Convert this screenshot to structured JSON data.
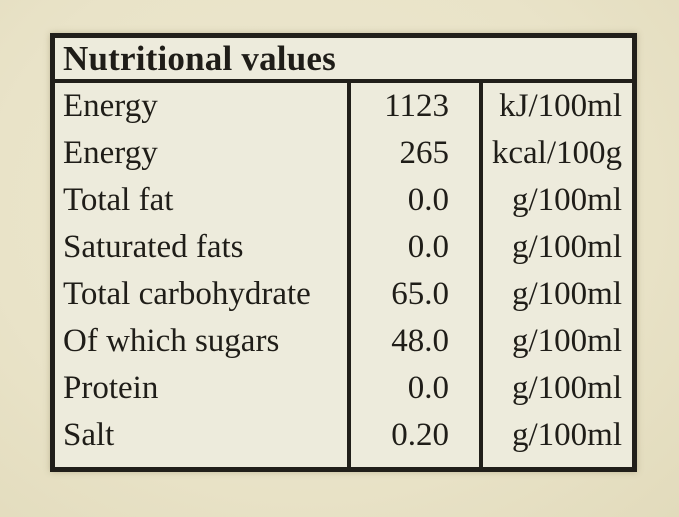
{
  "table": {
    "title": "Nutritional values",
    "border_color": "#211f1a",
    "cell_background": "#edebdc",
    "page_background": "#e9e3c8",
    "rows": [
      {
        "label": "Energy",
        "value": "1123",
        "unit": "kJ/100ml"
      },
      {
        "label": "Energy",
        "value": "265",
        "unit": "kcal/100g"
      },
      {
        "label": "Total fat",
        "value": "0.0",
        "unit": "g/100ml"
      },
      {
        "label": "Saturated fats",
        "value": "0.0",
        "unit": "g/100ml"
      },
      {
        "label": "Total carbohydrate",
        "value": "65.0",
        "unit": "g/100ml"
      },
      {
        "label": "Of which sugars",
        "value": "48.0",
        "unit": "g/100ml"
      },
      {
        "label": "Protein",
        "value": "0.0",
        "unit": "g/100ml"
      },
      {
        "label": "Salt",
        "value": "0.20",
        "unit": "g/100ml"
      }
    ]
  }
}
